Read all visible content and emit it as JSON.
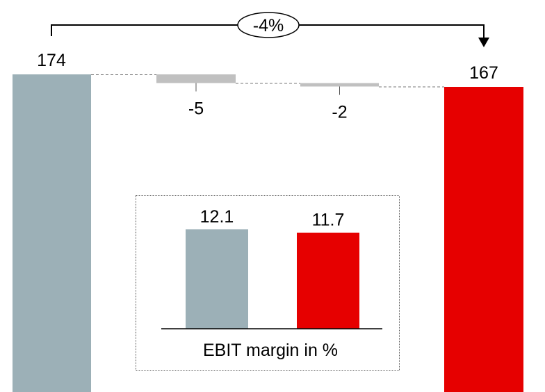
{
  "chart_data": [
    {
      "type": "bar",
      "subtype": "waterfall",
      "categories": [
        "",
        "",
        "",
        ""
      ],
      "steps": [
        {
          "kind": "total",
          "value": 174,
          "label": "174",
          "color": "#9cb0b7"
        },
        {
          "kind": "delta",
          "value": -5,
          "label": "-5",
          "color": "#c0c0c0"
        },
        {
          "kind": "delta",
          "value": -2,
          "label": "-2",
          "color": "#c0c0c0"
        },
        {
          "kind": "total",
          "value": 167,
          "label": "167",
          "color": "#e60000"
        }
      ],
      "change_annotation": "-4%",
      "ylim": [
        0,
        174
      ]
    },
    {
      "type": "bar",
      "title": "EBIT margin in %",
      "categories": [
        "",
        ""
      ],
      "values": [
        12.1,
        11.7
      ],
      "labels": [
        "12.1",
        "11.7"
      ],
      "colors": [
        "#9cb0b7",
        "#e60000"
      ],
      "ylim": [
        0,
        12.1
      ]
    }
  ]
}
